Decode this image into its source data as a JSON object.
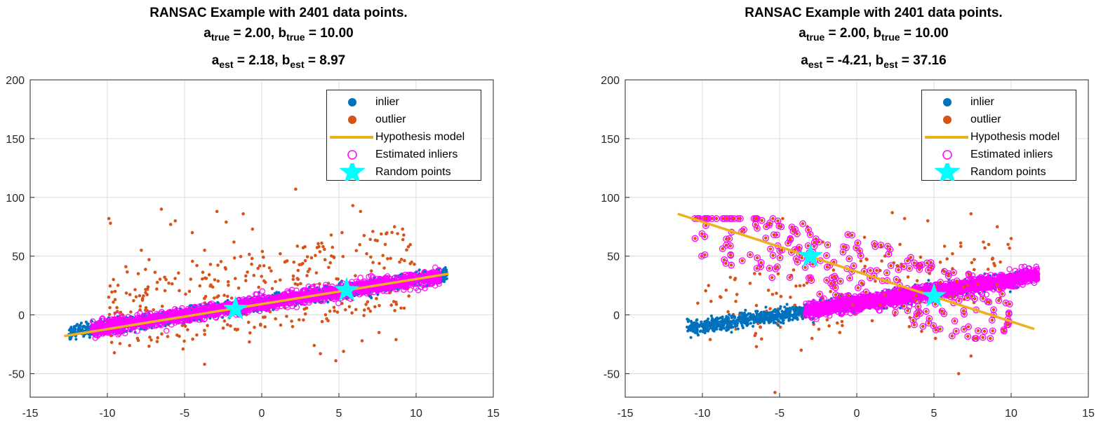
{
  "chart_data": [
    {
      "type": "scatter",
      "title": "RANSAC Example with 2401 data points.",
      "subtitle_true": {
        "a_label": "a",
        "a_sub": "true",
        "a_val": " = 2.00, ",
        "b_label": "b",
        "b_sub": "true",
        "b_val": " = 10.00"
      },
      "subtitle_est": {
        "a_label": "a",
        "a_sub": "est",
        "a_val": " = 2.18, ",
        "b_label": "b",
        "b_sub": "est",
        "b_val": " = 8.97"
      },
      "xlim": [
        -15,
        15
      ],
      "ylim": [
        -70,
        200
      ],
      "xticks": [
        -15,
        -10,
        -5,
        0,
        5,
        10,
        15
      ],
      "yticks": [
        -50,
        0,
        50,
        100,
        150,
        200
      ],
      "grid": true,
      "legend_placement": "top-right",
      "legend": [
        "inlier",
        "outlier",
        "Hypothesis model",
        "Estimated inliers",
        "Random points"
      ],
      "true_model": {
        "a": 2.0,
        "b": 10.0
      },
      "est_model": {
        "a": 2.18,
        "b": 8.97
      },
      "inlier_x_range": [
        -12.5,
        12
      ],
      "inlier_noise": 3,
      "estimated_inlier_x_range": [
        -11,
        11.5
      ],
      "estimated_inlier_noise": 3,
      "hypothesis_line": {
        "x": [
          -12.8,
          12.1
        ],
        "y": [
          -18,
          35
        ]
      },
      "random_points": [
        {
          "x": -1.7,
          "y": 5
        },
        {
          "x": 5.5,
          "y": 21
        }
      ],
      "outliers": [
        {
          "x": -9.9,
          "y": 82
        },
        {
          "x": -9.8,
          "y": 78
        },
        {
          "x": -6.5,
          "y": 90
        },
        {
          "x": -5.6,
          "y": 80
        },
        {
          "x": -5.9,
          "y": 77
        },
        {
          "x": -4.5,
          "y": 70
        },
        {
          "x": -3.7,
          "y": 55
        },
        {
          "x": -2.9,
          "y": 88
        },
        {
          "x": -2.3,
          "y": 79
        },
        {
          "x": -1.8,
          "y": 62
        },
        {
          "x": -1.2,
          "y": 86
        },
        {
          "x": -0.6,
          "y": 73
        },
        {
          "x": 0.5,
          "y": 40
        },
        {
          "x": 1.5,
          "y": 45
        },
        {
          "x": 2.2,
          "y": 107
        },
        {
          "x": 3.1,
          "y": 39
        },
        {
          "x": 4.5,
          "y": 68
        },
        {
          "x": 5.2,
          "y": 70
        },
        {
          "x": 5.9,
          "y": 93
        },
        {
          "x": 6.4,
          "y": 88
        },
        {
          "x": 7.2,
          "y": 71
        },
        {
          "x": 8.6,
          "y": 75
        },
        {
          "x": 9.2,
          "y": 68
        },
        {
          "x": 9.5,
          "y": 58
        },
        {
          "x": -9.5,
          "y": 20
        },
        {
          "x": -8.0,
          "y": 35
        },
        {
          "x": -7.3,
          "y": 47
        },
        {
          "x": -6.8,
          "y": 22
        },
        {
          "x": -8.8,
          "y": 41
        },
        {
          "x": -7.8,
          "y": 55
        },
        {
          "x": -6.2,
          "y": 30
        },
        {
          "x": -4.2,
          "y": 42
        },
        {
          "x": -3.3,
          "y": 25
        },
        {
          "x": 1.2,
          "y": 52
        },
        {
          "x": 2.8,
          "y": 58
        },
        {
          "x": 4.1,
          "y": 47
        },
        {
          "x": 6.8,
          "y": 52
        },
        {
          "x": 8.0,
          "y": 60
        },
        {
          "x": -5.1,
          "y": -29
        },
        {
          "x": -3.7,
          "y": -42
        },
        {
          "x": -0.8,
          "y": -23
        },
        {
          "x": 3.4,
          "y": -26
        },
        {
          "x": 3.8,
          "y": -33
        },
        {
          "x": 4.8,
          "y": -39
        },
        {
          "x": 5.3,
          "y": -31
        },
        {
          "x": 6.5,
          "y": -22
        },
        {
          "x": 7.6,
          "y": -15
        },
        {
          "x": 8.7,
          "y": -21
        },
        {
          "x": 2.0,
          "y": -10
        },
        {
          "x": 4.3,
          "y": -5
        }
      ],
      "outlier_cloud": {
        "x_range": [
          -10,
          10
        ],
        "y_range": [
          -45,
          70
        ],
        "count": 330
      }
    },
    {
      "type": "scatter",
      "title": "RANSAC Example with 2401 data points.",
      "subtitle_true": {
        "a_label": "a",
        "a_sub": "true",
        "a_val": " = 2.00, ",
        "b_label": "b",
        "b_sub": "true",
        "b_val": " = 10.00"
      },
      "subtitle_est": {
        "a_label": "a",
        "a_sub": "est",
        "a_val": " = -4.21, ",
        "b_label": "b",
        "b_sub": "est",
        "b_val": " = 37.16"
      },
      "xlim": [
        -15,
        15
      ],
      "ylim": [
        -70,
        200
      ],
      "xticks": [
        -15,
        -10,
        -5,
        0,
        5,
        10,
        15
      ],
      "yticks": [
        -50,
        0,
        50,
        100,
        150,
        200
      ],
      "grid": true,
      "legend_placement": "top-right",
      "legend": [
        "inlier",
        "outlier",
        "Hypothesis model",
        "Estimated inliers",
        "Random points"
      ],
      "true_model": {
        "a": 2.0,
        "b": 10.0
      },
      "est_model": {
        "a": -4.21,
        "b": 37.16
      },
      "inlier_x_range": [
        -11,
        11.5
      ],
      "inlier_noise": 3,
      "estimated_inlier_x_range": [
        -3.3,
        11.7
      ],
      "estimated_inlier_noise": 3,
      "hypothesis_line": {
        "x": [
          -11.6,
          11.5
        ],
        "y": [
          86,
          -12
        ]
      },
      "random_points": [
        {
          "x": -3.0,
          "y": 50
        },
        {
          "x": 5.0,
          "y": 16
        }
      ],
      "outliers": [
        {
          "x": -9.8,
          "y": 80
        },
        {
          "x": -4.8,
          "y": 82
        },
        {
          "x": -3.2,
          "y": 75
        },
        {
          "x": 2.3,
          "y": 87
        },
        {
          "x": 3.1,
          "y": 82
        },
        {
          "x": 4.6,
          "y": 80
        },
        {
          "x": 7.4,
          "y": 86
        },
        {
          "x": 9.1,
          "y": 75
        },
        {
          "x": 9.8,
          "y": 60
        },
        {
          "x": 10.0,
          "y": 65
        },
        {
          "x": -10.3,
          "y": 10
        },
        {
          "x": -9.6,
          "y": 25
        },
        {
          "x": -8.8,
          "y": 15
        },
        {
          "x": -7.9,
          "y": 30
        },
        {
          "x": -6.5,
          "y": 8
        },
        {
          "x": -5.1,
          "y": 5
        },
        {
          "x": -4.3,
          "y": 15
        },
        {
          "x": -5.3,
          "y": -66
        },
        {
          "x": -3.6,
          "y": -30
        },
        {
          "x": -2.9,
          "y": -20
        },
        {
          "x": -1.1,
          "y": -15
        },
        {
          "x": 1.0,
          "y": -5
        },
        {
          "x": 3.4,
          "y": -10
        },
        {
          "x": 4.2,
          "y": -14
        },
        {
          "x": 5.1,
          "y": -20
        },
        {
          "x": 6.6,
          "y": -50
        },
        {
          "x": 7.4,
          "y": -35
        },
        {
          "x": -6.5,
          "y": -27
        },
        {
          "x": -2.2,
          "y": 62
        },
        {
          "x": 0.5,
          "y": 66
        },
        {
          "x": 1.6,
          "y": 58
        },
        {
          "x": 2.8,
          "y": 60
        },
        {
          "x": 6.2,
          "y": 52
        },
        {
          "x": 8.3,
          "y": 57
        },
        {
          "x": 9.3,
          "y": 45
        }
      ],
      "estimated_outlier_region": {
        "x_range": [
          -10.5,
          10
        ],
        "y_range": [
          -20,
          82
        ],
        "count": 260
      },
      "outlier_cloud": {
        "x_range": [
          -10,
          10
        ],
        "y_range": [
          -40,
          60
        ],
        "count": 120
      }
    }
  ]
}
